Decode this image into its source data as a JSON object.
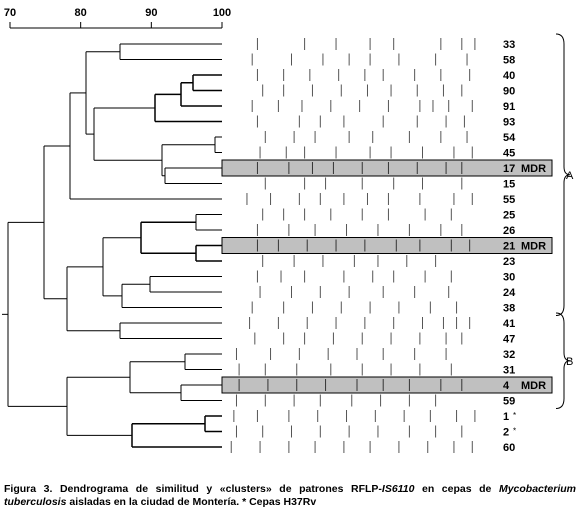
{
  "scale": {
    "ticks": [
      "70",
      "80",
      "90",
      "100"
    ],
    "values": [
      70,
      80,
      90,
      100
    ]
  },
  "clusters": [
    {
      "label": "A",
      "from_row": 0,
      "to_row": 17
    },
    {
      "label": "B",
      "from_row": 18,
      "to_row": 23
    }
  ],
  "rows": [
    {
      "id": "33",
      "marker": "",
      "mdr": false,
      "bands": [
        0.12,
        0.3,
        0.42,
        0.55,
        0.64,
        0.82,
        0.9,
        0.95
      ]
    },
    {
      "id": "58",
      "marker": "",
      "mdr": false,
      "bands": [
        0.1,
        0.25,
        0.37,
        0.47,
        0.55,
        0.66,
        0.8,
        0.92
      ]
    },
    {
      "id": "40",
      "marker": "",
      "mdr": false,
      "bands": [
        0.12,
        0.22,
        0.32,
        0.43,
        0.53,
        0.6,
        0.72,
        0.82,
        0.93
      ]
    },
    {
      "id": "90",
      "marker": "",
      "mdr": false,
      "bands": [
        0.14,
        0.22,
        0.33,
        0.44,
        0.54,
        0.63,
        0.73,
        0.83,
        0.9
      ]
    },
    {
      "id": "91",
      "marker": "",
      "mdr": false,
      "bands": [
        0.1,
        0.2,
        0.29,
        0.4,
        0.51,
        0.62,
        0.74,
        0.79,
        0.85,
        0.94
      ]
    },
    {
      "id": "93",
      "marker": "",
      "mdr": false,
      "bands": [
        0.12,
        0.28,
        0.36,
        0.45,
        0.6,
        0.73,
        0.84,
        0.91
      ]
    },
    {
      "id": "54",
      "marker": "",
      "mdr": false,
      "bands": [
        0.15,
        0.26,
        0.34,
        0.47,
        0.56,
        0.7,
        0.82,
        0.92
      ]
    },
    {
      "id": "45",
      "marker": "",
      "mdr": false,
      "bands": [
        0.13,
        0.23,
        0.3,
        0.42,
        0.55,
        0.63,
        0.75,
        0.87,
        0.94
      ]
    },
    {
      "id": "17",
      "marker": "MDR",
      "mdr": true,
      "bands": [
        0.12,
        0.24,
        0.33,
        0.41,
        0.52,
        0.62,
        0.73,
        0.84,
        0.9
      ]
    },
    {
      "id": "15",
      "marker": "",
      "mdr": false,
      "bands": [
        0.15,
        0.3,
        0.38,
        0.52,
        0.64,
        0.75,
        0.9
      ]
    },
    {
      "id": "55",
      "marker": "",
      "mdr": false,
      "bands": [
        0.08,
        0.17,
        0.28,
        0.36,
        0.45,
        0.54,
        0.62,
        0.74,
        0.87,
        0.94
      ]
    },
    {
      "id": "25",
      "marker": "",
      "mdr": false,
      "bands": [
        0.14,
        0.22,
        0.3,
        0.4,
        0.52,
        0.62,
        0.76,
        0.86
      ]
    },
    {
      "id": "26",
      "marker": "",
      "mdr": false,
      "bands": [
        0.12,
        0.24,
        0.34,
        0.46,
        0.58,
        0.7,
        0.82,
        0.9
      ]
    },
    {
      "id": "21",
      "marker": "MDR",
      "mdr": true,
      "bands": [
        0.12,
        0.2,
        0.31,
        0.42,
        0.53,
        0.65,
        0.74,
        0.86,
        0.93
      ]
    },
    {
      "id": "23",
      "marker": "",
      "mdr": false,
      "bands": [
        0.14,
        0.26,
        0.37,
        0.49,
        0.58,
        0.69,
        0.8
      ]
    },
    {
      "id": "30",
      "marker": "",
      "mdr": false,
      "bands": [
        0.12,
        0.21,
        0.3,
        0.45,
        0.56,
        0.64,
        0.76,
        0.86
      ]
    },
    {
      "id": "24",
      "marker": "",
      "mdr": false,
      "bands": [
        0.13,
        0.25,
        0.36,
        0.47,
        0.6,
        0.72,
        0.85
      ]
    },
    {
      "id": "38",
      "marker": "",
      "mdr": false,
      "bands": [
        0.1,
        0.22,
        0.33,
        0.44,
        0.55,
        0.66,
        0.78,
        0.88
      ]
    },
    {
      "id": "41",
      "marker": "",
      "mdr": false,
      "bands": [
        0.09,
        0.2,
        0.31,
        0.42,
        0.53,
        0.64,
        0.75,
        0.83,
        0.88,
        0.93
      ]
    },
    {
      "id": "47",
      "marker": "",
      "mdr": false,
      "bands": [
        0.11,
        0.22,
        0.3,
        0.41,
        0.52,
        0.63,
        0.74,
        0.84,
        0.9
      ]
    },
    {
      "id": "32",
      "marker": "",
      "mdr": false,
      "bands": [
        0.04,
        0.17,
        0.28,
        0.39,
        0.5,
        0.6,
        0.72,
        0.84
      ]
    },
    {
      "id": "31",
      "marker": "",
      "mdr": false,
      "bands": [
        0.05,
        0.15,
        0.27,
        0.4,
        0.52,
        0.63,
        0.74,
        0.86
      ]
    },
    {
      "id": "4",
      "marker": "MDR",
      "mdr": true,
      "bands": [
        0.05,
        0.16,
        0.27,
        0.38,
        0.5,
        0.6,
        0.7,
        0.82,
        0.9
      ]
    },
    {
      "id": "59",
      "marker": "",
      "mdr": false,
      "bands": [
        0.04,
        0.15,
        0.26,
        0.36,
        0.48,
        0.59,
        0.7,
        0.8
      ]
    },
    {
      "id": "1",
      "marker": "*",
      "mdr": false,
      "bands": [
        0.03,
        0.12,
        0.24,
        0.35,
        0.46,
        0.57,
        0.68,
        0.78,
        0.88,
        0.95
      ]
    },
    {
      "id": "2",
      "marker": "*",
      "mdr": false,
      "bands": [
        0.04,
        0.14,
        0.25,
        0.36,
        0.47,
        0.58,
        0.7,
        0.8,
        0.9
      ]
    },
    {
      "id": "60",
      "marker": "",
      "mdr": false,
      "bands": [
        0.02,
        0.13,
        0.24,
        0.34,
        0.45,
        0.55,
        0.66,
        0.77,
        0.87,
        0.94
      ]
    }
  ],
  "caption": {
    "prefix": "Figura 3. Dendrograma de similitud y «clusters» de patrones RFLP-",
    "italic1": "IS6110",
    "middle": " en cepas de ",
    "italic2": "Mycobacterium tuberculosis",
    "suffix": " aisladas en la ciudad de Montería. * Cepas H37Rv"
  }
}
